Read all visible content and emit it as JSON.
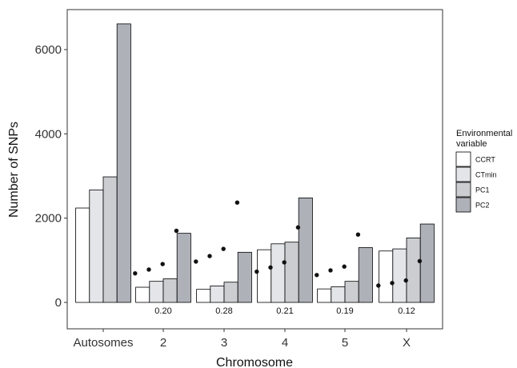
{
  "chart_data": {
    "type": "bar",
    "xlabel": "Chromosome",
    "ylabel": "Number of SNPs",
    "ylim": [
      0,
      6600
    ],
    "yticks": [
      0,
      2000,
      4000,
      6000
    ],
    "categories": [
      "Autosomes",
      "2",
      "3",
      "4",
      "5",
      "X"
    ],
    "series": [
      {
        "name": "CCRT",
        "color": "#ffffff",
        "values": [
          2240,
          360,
          310,
          1250,
          320,
          1220
        ]
      },
      {
        "name": "CTmin",
        "color": "#e3e5e9",
        "values": [
          2670,
          500,
          390,
          1390,
          370,
          1270
        ]
      },
      {
        "name": "PC1",
        "color": "#cbcdd1",
        "values": [
          2980,
          560,
          480,
          1430,
          500,
          1530
        ]
      },
      {
        "name": "PC2",
        "color": "#aeb1b8",
        "values": [
          6610,
          1640,
          1190,
          2480,
          1300,
          1860
        ]
      }
    ],
    "points": {
      "categories": [
        "2",
        "3",
        "4",
        "5",
        "X"
      ],
      "series": [
        {
          "name": "CCRT",
          "values": [
            690,
            970,
            730,
            650,
            400
          ]
        },
        {
          "name": "CTmin",
          "values": [
            780,
            1100,
            830,
            760,
            460
          ]
        },
        {
          "name": "PC1",
          "values": [
            910,
            1270,
            950,
            850,
            520
          ]
        },
        {
          "name": "PC2",
          "values": [
            1700,
            2370,
            1780,
            1610,
            980
          ]
        }
      ]
    },
    "ratio_labels": [
      {
        "category": "2",
        "text": "0.20"
      },
      {
        "category": "3",
        "text": "0.28"
      },
      {
        "category": "4",
        "text": "0.21"
      },
      {
        "category": "5",
        "text": "0.19"
      },
      {
        "category": "X",
        "text": "0.12"
      }
    ],
    "legend": {
      "title_lines": [
        "Environmental",
        "variable"
      ],
      "position": "right",
      "entries": [
        "CCRT",
        "CTmin",
        "PC1",
        "PC2"
      ]
    },
    "grid": false,
    "frame_color": "#333333",
    "bar_stroke": "#000000",
    "point_color": "#111111"
  }
}
